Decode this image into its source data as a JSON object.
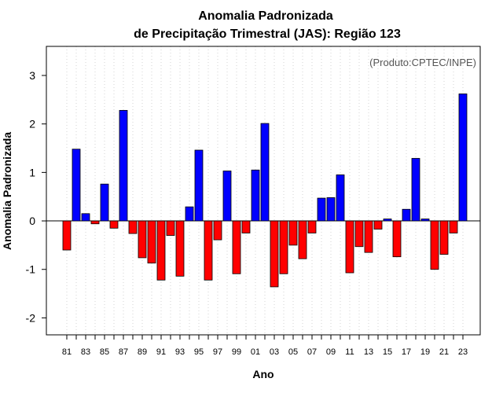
{
  "chart_data": {
    "type": "bar",
    "title_line1": "Anomalia Padronizada",
    "title_line2": "de Precipitação Trimestral (JAS): Região 123",
    "xlabel": "Ano",
    "ylabel": "Anomalia Padronizada",
    "credit": "(Produto:CPTEC/INPE)",
    "ylim": [
      -2.35,
      3.6
    ],
    "yticks": [
      "-2",
      "-1",
      "0",
      "1",
      "2",
      "3"
    ],
    "categories": [
      "81",
      "82",
      "83",
      "84",
      "85",
      "86",
      "87",
      "88",
      "89",
      "90",
      "91",
      "92",
      "93",
      "94",
      "95",
      "96",
      "97",
      "98",
      "99",
      "00",
      "01",
      "02",
      "03",
      "04",
      "05",
      "06",
      "07",
      "08",
      "09",
      "10",
      "11",
      "12",
      "13",
      "14",
      "15",
      "16",
      "17",
      "18",
      "19",
      "20",
      "21",
      "22",
      "23"
    ],
    "xtick_labels": [
      "81",
      "83",
      "85",
      "87",
      "89",
      "91",
      "93",
      "95",
      "97",
      "99",
      "01",
      "03",
      "05",
      "07",
      "09",
      "11",
      "13",
      "15",
      "17",
      "19",
      "21",
      "23"
    ],
    "values": [
      -0.6,
      1.48,
      0.15,
      -0.06,
      0.76,
      -0.15,
      2.28,
      -0.26,
      -0.76,
      -0.87,
      -1.22,
      -0.3,
      -1.14,
      0.29,
      1.46,
      -1.22,
      -0.39,
      1.03,
      -1.09,
      -0.25,
      1.05,
      2.01,
      -1.36,
      -1.09,
      -0.5,
      -0.78,
      -0.25,
      0.47,
      0.48,
      0.95,
      -1.07,
      -0.53,
      -0.65,
      -0.17,
      0.04,
      -0.74,
      0.24,
      1.29,
      0.04,
      -1.0,
      -0.69,
      -0.25,
      2.62
    ],
    "colors": {
      "positive": "#0000ff",
      "negative": "#ff0000",
      "gridline": "#d3d3d3",
      "frame": "#000000"
    }
  }
}
